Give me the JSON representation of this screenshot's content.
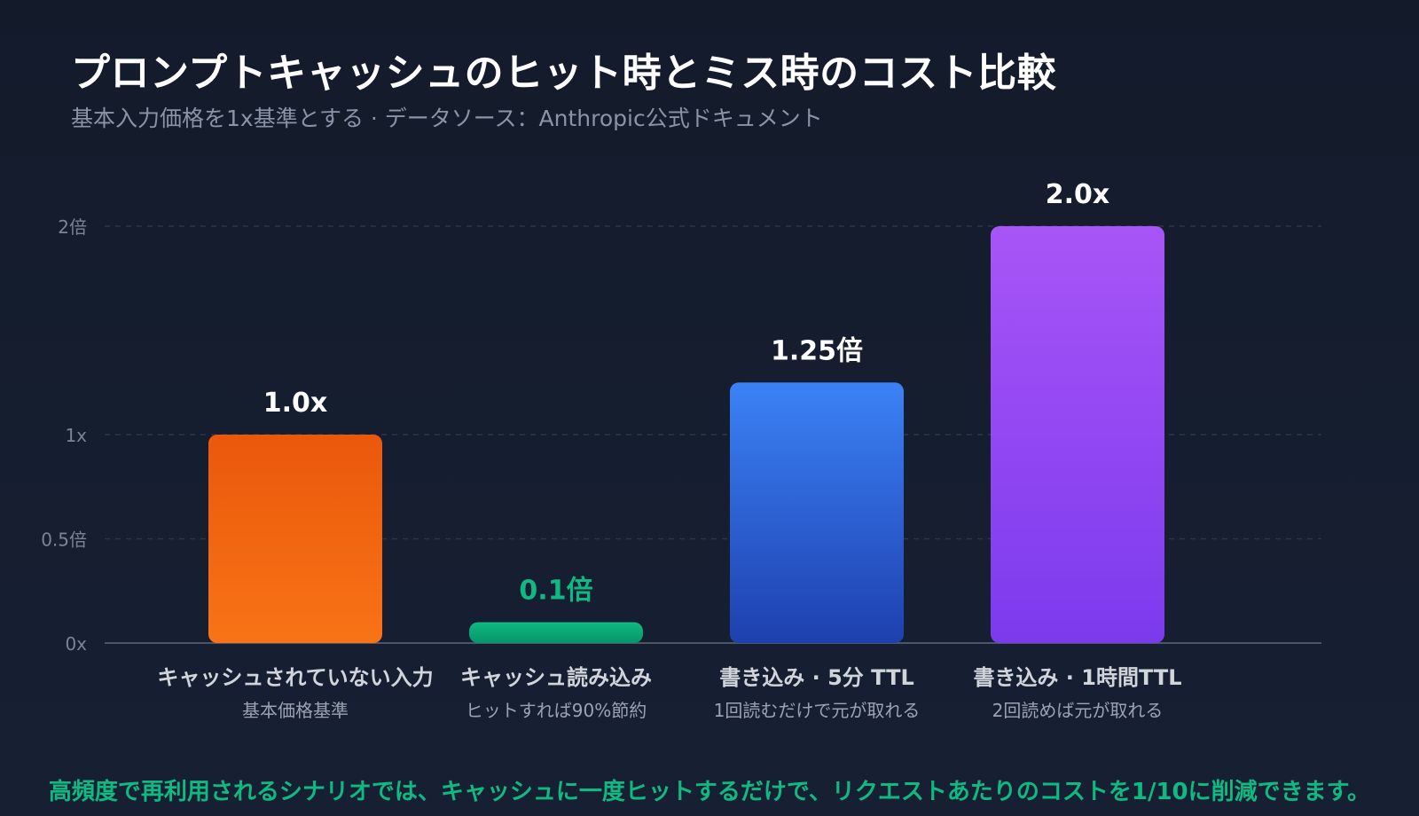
{
  "title": "プロンプトキャッシュのヒット時とミス時のコスト比較",
  "subtitle": "基本入力価格を1x基準とする · データソース：Anthropic公式ドキュメント",
  "footnote": "高頻度で再利用されるシナリオでは、キャッシュに一度ヒットするだけで、リクエストあたりのコストを1/10に削減できます。",
  "colors": {
    "background": "#151d2e",
    "axis": "#4b5563",
    "grid": "#374151",
    "tick_label": "#7b8494",
    "category_label": "#d1d5db",
    "category_sublabel": "#9ca3af",
    "highlight_value": "#10b981"
  },
  "chart_data": {
    "type": "bar",
    "ylim": [
      0,
      2
    ],
    "grid": true,
    "y_ticks": [
      {
        "value": 0,
        "label": "0x"
      },
      {
        "value": 0.5,
        "label": "0.5倍"
      },
      {
        "value": 1,
        "label": "1x"
      },
      {
        "value": 2,
        "label": "2倍"
      }
    ],
    "bars": [
      {
        "category": "キャッシュされていない入力",
        "sublabel": "基本価格基準",
        "value": 1.0,
        "value_label": "1.0x",
        "color_top": "#ea580c",
        "color_bottom": "#f97316",
        "label_color": "#ffffff"
      },
      {
        "category": "キャッシュ読み込み",
        "sublabel": "ヒットすれば90%節約",
        "value": 0.1,
        "value_label": "0.1倍",
        "color_top": "#10b981",
        "color_bottom": "#059669",
        "label_color": "#10b981"
      },
      {
        "category": "書き込み · 5分 TTL",
        "sublabel": "1回読むだけで元が取れる",
        "value": 1.25,
        "value_label": "1.25倍",
        "color_top": "#3b82f6",
        "color_bottom": "#1e40af",
        "label_color": "#ffffff"
      },
      {
        "category": "書き込み · 1時間TTL",
        "sublabel": "2回読めば元が取れる",
        "value": 2.0,
        "value_label": "2.0x",
        "color_top": "#a855f7",
        "color_bottom": "#7c3aed",
        "label_color": "#ffffff"
      }
    ]
  }
}
